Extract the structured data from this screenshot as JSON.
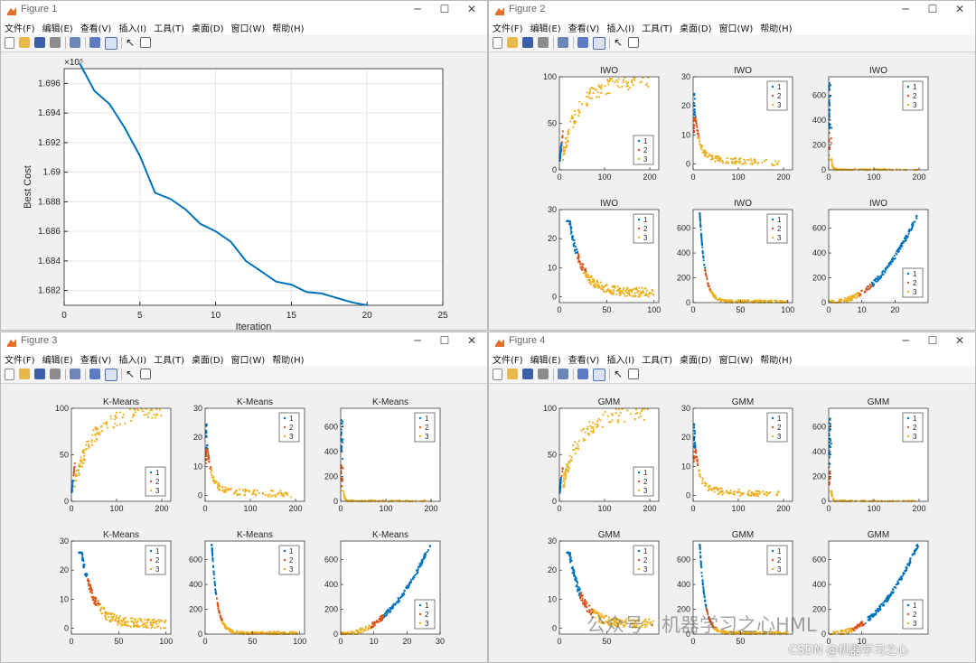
{
  "menus": {
    "fig1": [
      "文件(F)",
      "编辑(E)",
      "查看(V)",
      "插入(I)",
      "工具(T)",
      "桌面(D)",
      "窗口(W)",
      "帮助(H)"
    ],
    "fig2": [
      "文件(F)",
      "编辑(E)",
      "查看(V)",
      "插入(I)",
      "工具(T)",
      "桌面(D)",
      "窗口(W)",
      "帮助(H)"
    ],
    "fig3": [
      "文件(F)",
      "编辑(E)",
      "查看(V)",
      "插入(I)",
      "工具(T)",
      "桌面(D)",
      "窗口(W)",
      "帮助(H)"
    ],
    "fig4": [
      "文件(F)",
      "编辑(E)",
      "查看(V)",
      "插入(I)",
      "工具(T)",
      "桌面(D)",
      "窗口(W)",
      "帮助(H)"
    ]
  },
  "window_controls": {
    "minimize": "─",
    "maximize": "☐",
    "close": "✕"
  },
  "colors": {
    "cluster1": "#0072BD",
    "cluster2": "#D95319",
    "cluster3": "#EDB120",
    "line": "#0072BD",
    "axis": "#262626",
    "grid": "#e6e6e6"
  },
  "windows": {
    "fig1": {
      "title": "Figure 1"
    },
    "fig2": {
      "title": "Figure 2"
    },
    "fig3": {
      "title": "Figure 3"
    },
    "fig4": {
      "title": "Figure 4"
    }
  },
  "watermark": {
    "primary": "公众号 · 机器学习之心HML",
    "secondary": "CSDN @机器学习之心"
  },
  "chart_data": [
    {
      "type": "line",
      "figure": "Figure 1",
      "title": "",
      "xlabel": "Iteration",
      "ylabel": "Best Cost",
      "exponent_label": "×10⁵",
      "x": [
        1,
        2,
        3,
        4,
        5,
        6,
        7,
        8,
        9,
        10,
        11,
        12,
        13,
        14,
        15,
        16,
        17,
        18,
        19,
        20,
        21,
        22,
        23,
        24,
        25
      ],
      "y": [
        1.6974,
        1.6955,
        1.6946,
        1.693,
        1.6911,
        1.6886,
        1.6882,
        1.6875,
        1.6865,
        1.686,
        1.6853,
        1.684,
        1.6833,
        1.6826,
        1.6824,
        1.6819,
        1.6818,
        1.6815,
        1.6812,
        1.681,
        1.6808,
        1.6806,
        1.6805,
        1.6805,
        1.6805
      ],
      "xlim": [
        0,
        25
      ],
      "ylim": [
        1.681,
        1.697
      ],
      "xticks": [
        0,
        5,
        10,
        15,
        20,
        25
      ],
      "yticks": [
        1.682,
        1.684,
        1.686,
        1.688,
        1.69,
        1.692,
        1.694,
        1.696
      ],
      "yticklabels": [
        "1.682",
        "1.684",
        "1.686",
        "1.688",
        "1.69",
        "1.692",
        "1.694",
        "1.696"
      ],
      "grid": true
    },
    {
      "type": "scatter",
      "figure": "Figure 2",
      "subplots": [
        {
          "title": "IWO",
          "shape": "rise",
          "xlim": [
            0,
            220
          ],
          "ylim": [
            0,
            100
          ],
          "xticks": [
            0,
            100,
            200
          ],
          "yticks": [
            0,
            50,
            100
          ],
          "legend": [
            "1",
            "2",
            "3"
          ],
          "legend_pos": "bottom-right"
        },
        {
          "title": "IWO",
          "shape": "decay",
          "xlim": [
            0,
            220
          ],
          "ylim": [
            -2,
            30
          ],
          "xticks": [
            0,
            100,
            200
          ],
          "yticks": [
            0,
            10,
            20,
            30
          ],
          "legend": [
            "1",
            "2",
            "3"
          ],
          "legend_pos": "top-right"
        },
        {
          "title": "IWO",
          "shape": "sharp",
          "xlim": [
            0,
            220
          ],
          "ylim": [
            0,
            750
          ],
          "xticks": [
            0,
            100,
            200
          ],
          "yticks": [
            0,
            200,
            400,
            600
          ],
          "legend": [
            "1",
            "2",
            "3"
          ],
          "legend_pos": "top-right"
        },
        {
          "title": "IWO",
          "shape": "decayB",
          "xlim": [
            0,
            105
          ],
          "ylim": [
            -2,
            30
          ],
          "xticks": [
            0,
            50,
            100
          ],
          "yticks": [
            0,
            10,
            20,
            30
          ],
          "legend": [
            "1",
            "2",
            "3"
          ],
          "legend_pos": "top-right"
        },
        {
          "title": "IWO",
          "shape": "sharpB",
          "xlim": [
            0,
            105
          ],
          "ylim": [
            0,
            750
          ],
          "xticks": [
            0,
            50,
            100
          ],
          "yticks": [
            0,
            200,
            400,
            600
          ],
          "legend": [
            "1",
            "2",
            "3"
          ],
          "legend_pos": "top-right"
        },
        {
          "title": "IWO",
          "shape": "grow",
          "xlim": [
            0,
            30
          ],
          "ylim": [
            0,
            750
          ],
          "xticks": [
            0,
            10,
            20
          ],
          "yticks": [
            0,
            200,
            400,
            600
          ],
          "legend": [
            "1",
            "2",
            "3"
          ],
          "legend_pos": "bottom-right"
        }
      ]
    },
    {
      "type": "scatter",
      "figure": "Figure 3",
      "subplots": [
        {
          "title": "K-Means",
          "shape": "rise",
          "xlim": [
            0,
            220
          ],
          "ylim": [
            0,
            100
          ],
          "xticks": [
            0,
            100,
            200
          ],
          "yticks": [
            0,
            50,
            100
          ],
          "legend": [
            "1",
            "2",
            "3"
          ],
          "legend_pos": "bottom-right"
        },
        {
          "title": "K-Means",
          "shape": "decay",
          "xlim": [
            0,
            220
          ],
          "ylim": [
            -2,
            30
          ],
          "xticks": [
            0,
            100,
            200
          ],
          "yticks": [
            0,
            10,
            20,
            30
          ],
          "legend": [
            "1",
            "2",
            "3"
          ],
          "legend_pos": "top-right"
        },
        {
          "title": "K-Means",
          "shape": "sharp",
          "xlim": [
            0,
            220
          ],
          "ylim": [
            0,
            750
          ],
          "xticks": [
            0,
            100,
            200
          ],
          "yticks": [
            0,
            200,
            400,
            600
          ],
          "legend": [
            "1",
            "2",
            "3"
          ],
          "legend_pos": "top-right"
        },
        {
          "title": "K-Means",
          "shape": "decayB",
          "xlim": [
            0,
            105
          ],
          "ylim": [
            -2,
            30
          ],
          "xticks": [
            0,
            50,
            100
          ],
          "yticks": [
            0,
            10,
            20,
            30
          ],
          "legend": [
            "1",
            "2",
            "3"
          ],
          "legend_pos": "top-right"
        },
        {
          "title": "K-Means",
          "shape": "sharpB",
          "xlim": [
            0,
            105
          ],
          "ylim": [
            0,
            750
          ],
          "xticks": [
            0,
            50,
            100
          ],
          "yticks": [
            0,
            200,
            400,
            600
          ],
          "legend": [
            "1",
            "2",
            "3"
          ],
          "legend_pos": "top-right"
        },
        {
          "title": "K-Means",
          "shape": "grow",
          "xlim": [
            0,
            30
          ],
          "ylim": [
            0,
            750
          ],
          "xticks": [
            0,
            10,
            20,
            30
          ],
          "yticks": [
            0,
            200,
            400,
            600
          ],
          "legend": [
            "1",
            "2",
            "3"
          ],
          "legend_pos": "bottom-right"
        }
      ]
    },
    {
      "type": "scatter",
      "figure": "Figure 4",
      "subplots": [
        {
          "title": "GMM",
          "shape": "rise",
          "xlim": [
            0,
            220
          ],
          "ylim": [
            0,
            100
          ],
          "xticks": [
            0,
            100,
            200
          ],
          "yticks": [
            0,
            50,
            100
          ],
          "legend": [
            "1",
            "2",
            "3"
          ],
          "legend_pos": "bottom-right"
        },
        {
          "title": "GMM",
          "shape": "decay",
          "xlim": [
            0,
            220
          ],
          "ylim": [
            -2,
            30
          ],
          "xticks": [
            0,
            100,
            200
          ],
          "yticks": [
            0,
            10,
            20,
            30
          ],
          "legend": [
            "1",
            "2",
            "3"
          ],
          "legend_pos": "top-right"
        },
        {
          "title": "GMM",
          "shape": "sharp",
          "xlim": [
            0,
            220
          ],
          "ylim": [
            0,
            750
          ],
          "xticks": [
            0,
            100,
            200
          ],
          "yticks": [
            0,
            200,
            400,
            600
          ],
          "legend": [
            "1",
            "2",
            "3"
          ],
          "legend_pos": "top-right"
        },
        {
          "title": "GMM",
          "shape": "decayB",
          "xlim": [
            0,
            105
          ],
          "ylim": [
            -2,
            30
          ],
          "xticks": [
            0,
            50
          ],
          "yticks": [
            0,
            10,
            20,
            30
          ],
          "legend": [
            "1",
            "2",
            "3"
          ],
          "legend_pos": "top-right"
        },
        {
          "title": "GMM",
          "shape": "sharpB",
          "xlim": [
            0,
            105
          ],
          "ylim": [
            0,
            750
          ],
          "xticks": [
            0,
            50
          ],
          "yticks": [
            0,
            200,
            400,
            600
          ],
          "legend": [
            "1",
            "2",
            "3"
          ],
          "legend_pos": "top-right"
        },
        {
          "title": "GMM",
          "shape": "grow",
          "xlim": [
            0,
            30
          ],
          "ylim": [
            0,
            750
          ],
          "xticks": [
            0,
            10
          ],
          "yticks": [
            0,
            200,
            400,
            600
          ],
          "legend": [
            "1",
            "2",
            "3"
          ],
          "legend_pos": "bottom-right"
        }
      ]
    }
  ]
}
